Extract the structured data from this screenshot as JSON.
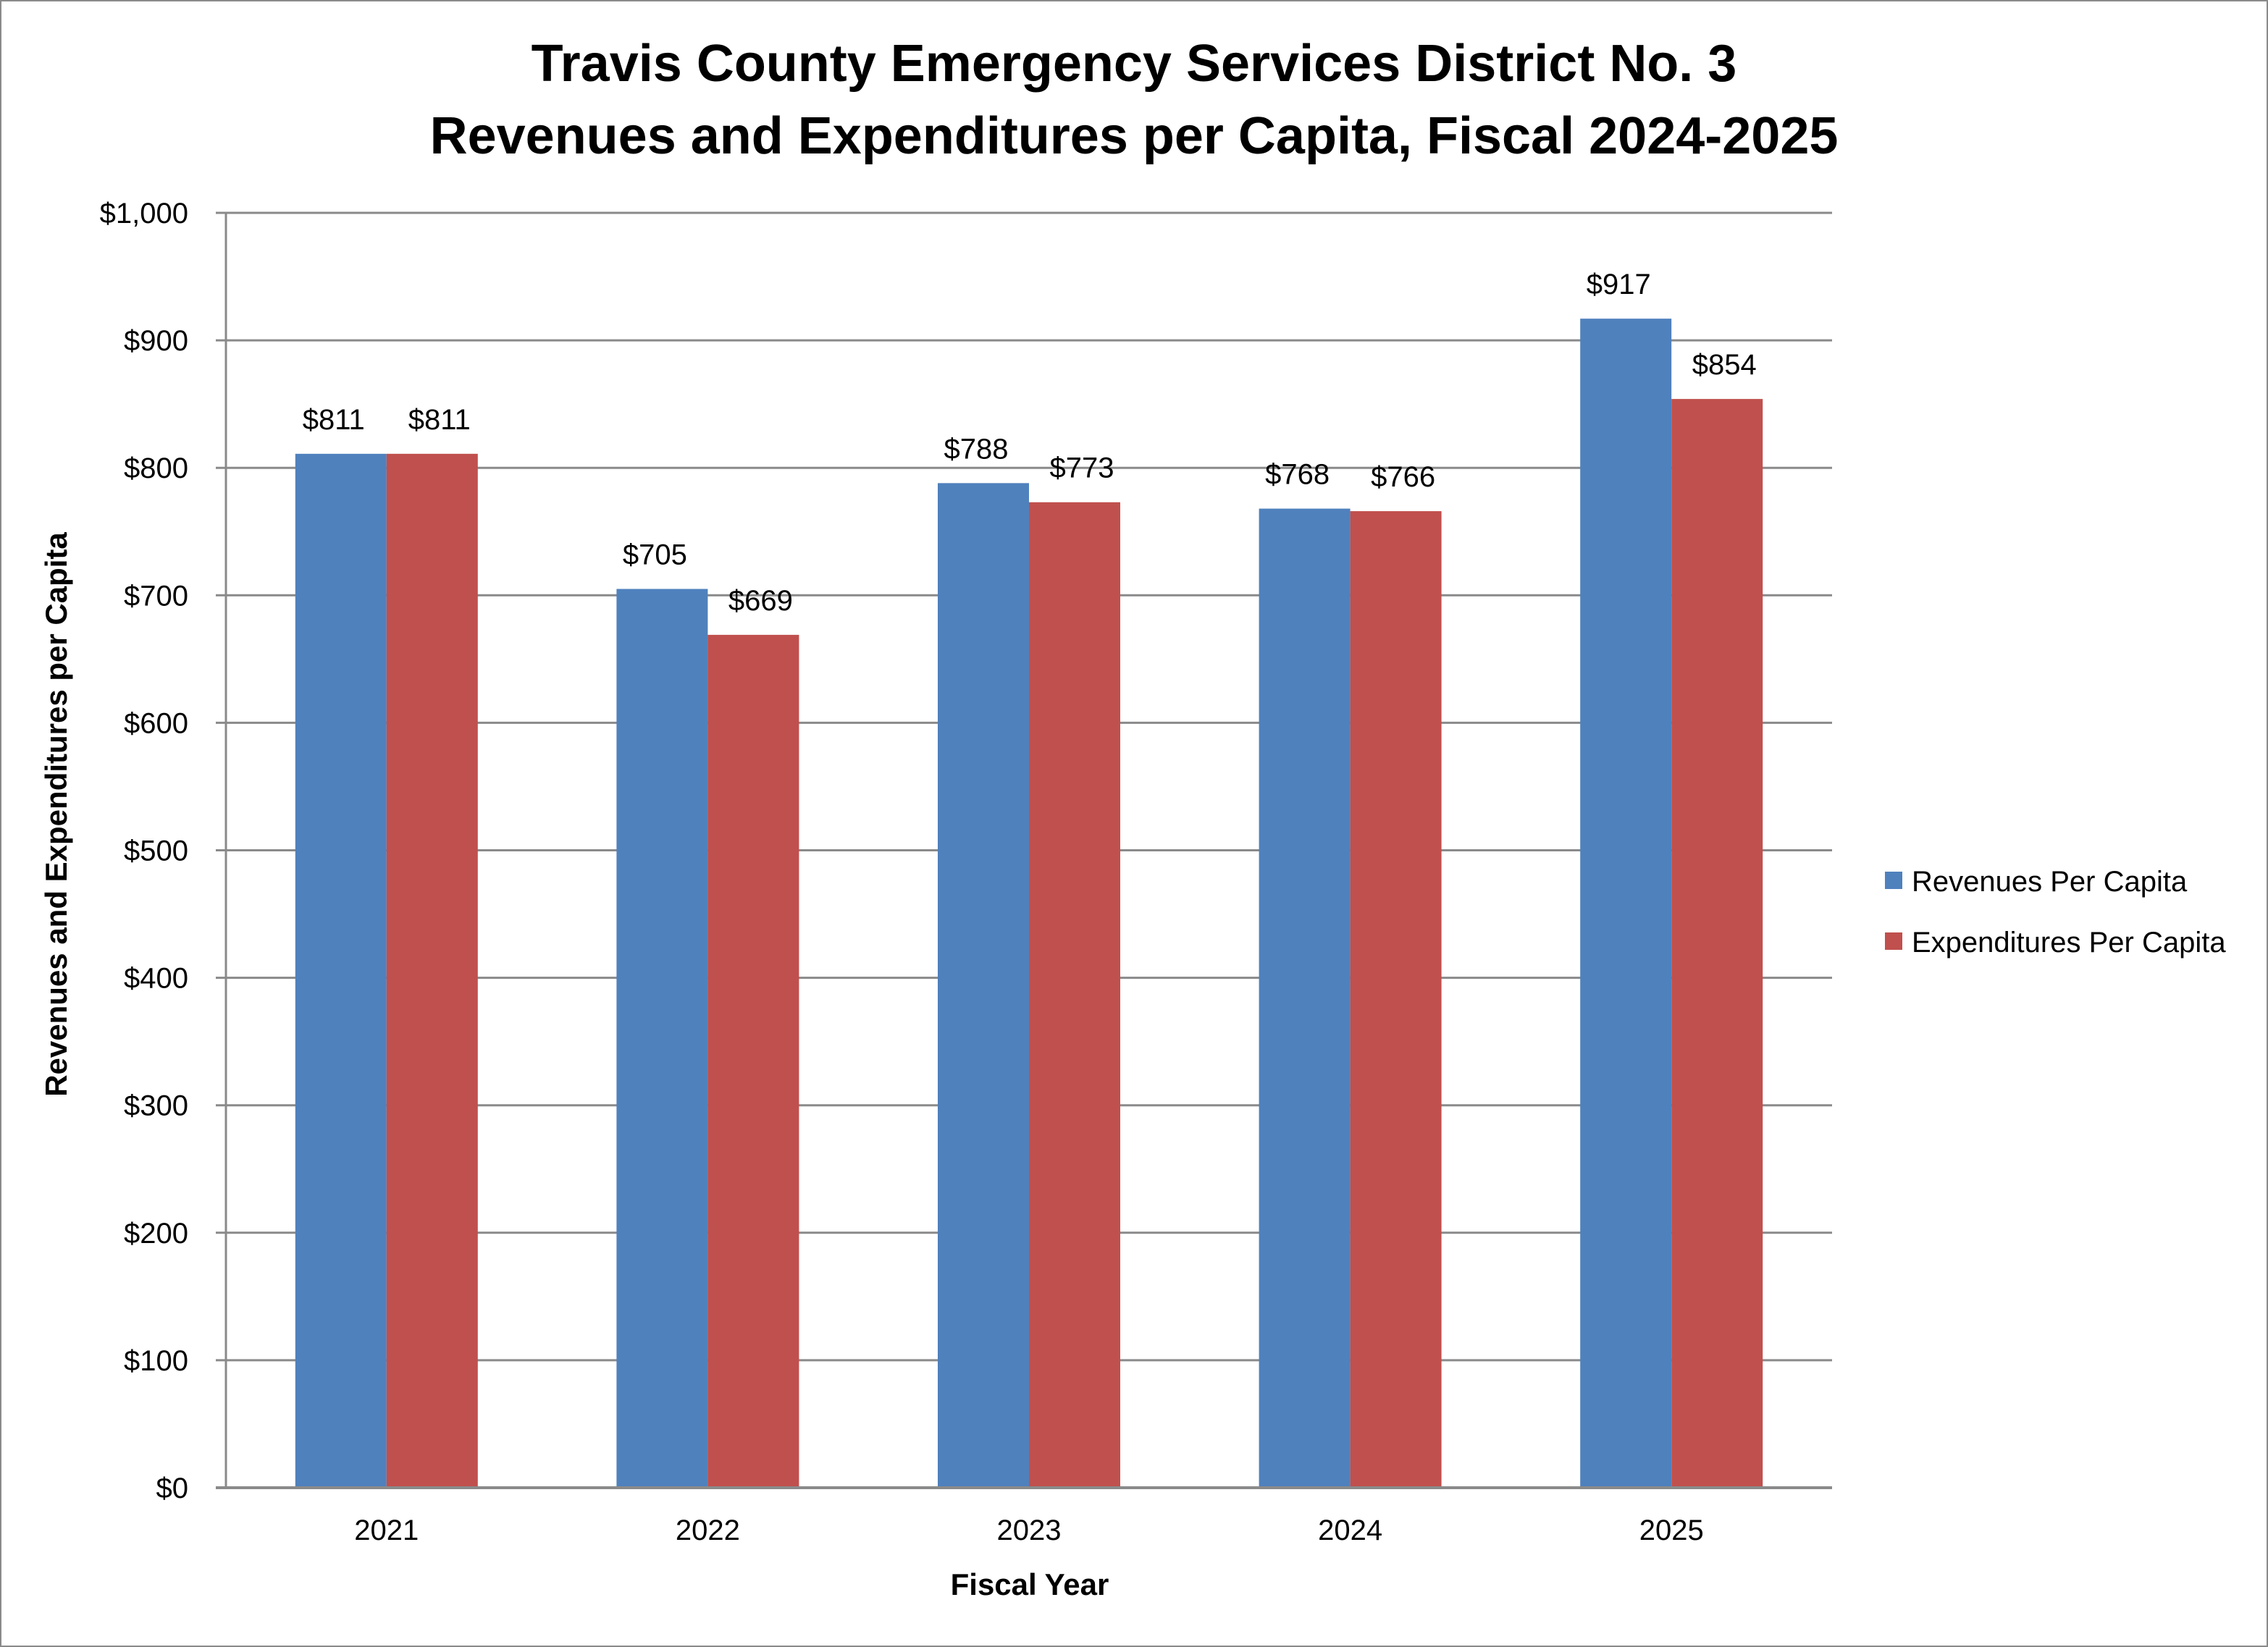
{
  "chart_data": {
    "type": "bar",
    "title": [
      "Travis County Emergency Services District No. 3",
      "Revenues and Expenditures per Capita, Fiscal 2024-2025"
    ],
    "xlabel": "Fiscal Year",
    "ylabel": "Revenues and Expenditures per Capita",
    "categories": [
      "2021",
      "2022",
      "2023",
      "2024",
      "2025"
    ],
    "series": [
      {
        "name": "Revenues Per Capita",
        "color": "#4F81BD",
        "values": [
          811,
          705,
          788,
          768,
          917
        ],
        "labels": [
          "$811",
          "$705",
          "$788",
          "$768",
          "$917"
        ]
      },
      {
        "name": "Expenditures Per Capita",
        "color": "#C0504D",
        "values": [
          811,
          669,
          773,
          766,
          854
        ],
        "labels": [
          "$811",
          "$669",
          "$773",
          "$766",
          "$854"
        ]
      }
    ],
    "ylim": [
      0,
      1000
    ],
    "yticks": [
      0,
      100,
      200,
      300,
      400,
      500,
      600,
      700,
      800,
      900,
      1000
    ],
    "ytick_labels": [
      "$0",
      "$100",
      "$200",
      "$300",
      "$400",
      "$500",
      "$600",
      "$700",
      "$800",
      "$900",
      "$1,000"
    ],
    "grid": true,
    "gridline_color": "#8A8A8A",
    "legend_position": "right"
  }
}
